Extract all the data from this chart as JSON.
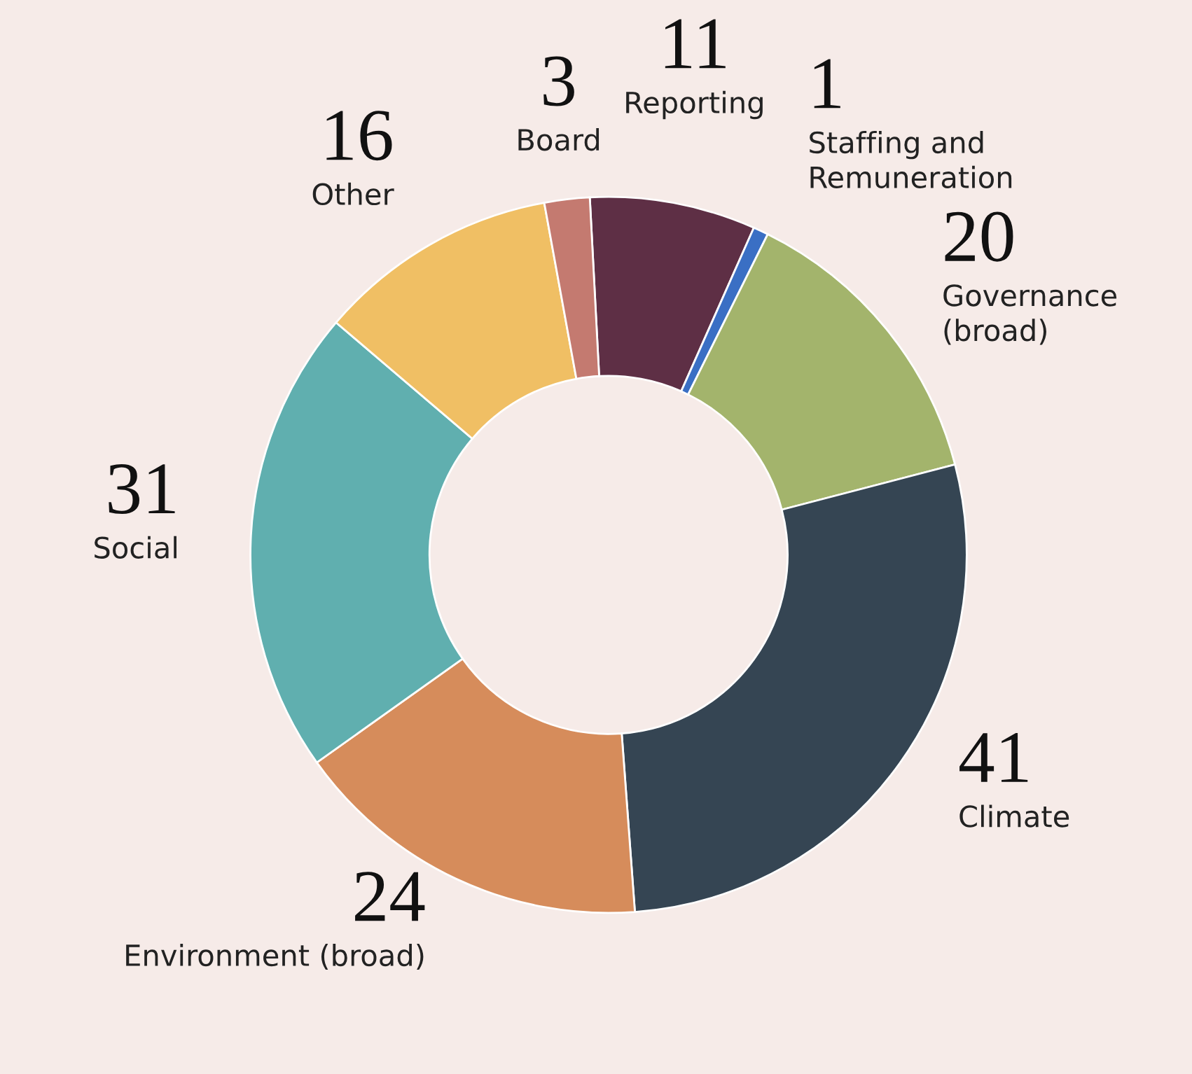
{
  "chart_data": {
    "type": "donut",
    "categories": [
      "Reporting",
      "Staffing and\nRemuneration",
      "Governance\n(broad)",
      "Climate",
      "Environment (broad)",
      "Social",
      "Other",
      "Board"
    ],
    "values": [
      11,
      1,
      20,
      41,
      24,
      31,
      16,
      3
    ],
    "colors": [
      "#5e2f45",
      "#3a6fc4",
      "#a3b46c",
      "#354553",
      "#d68c5b",
      "#60afaf",
      "#f0bf64",
      "#c47a70"
    ],
    "data_labels": true
  }
}
